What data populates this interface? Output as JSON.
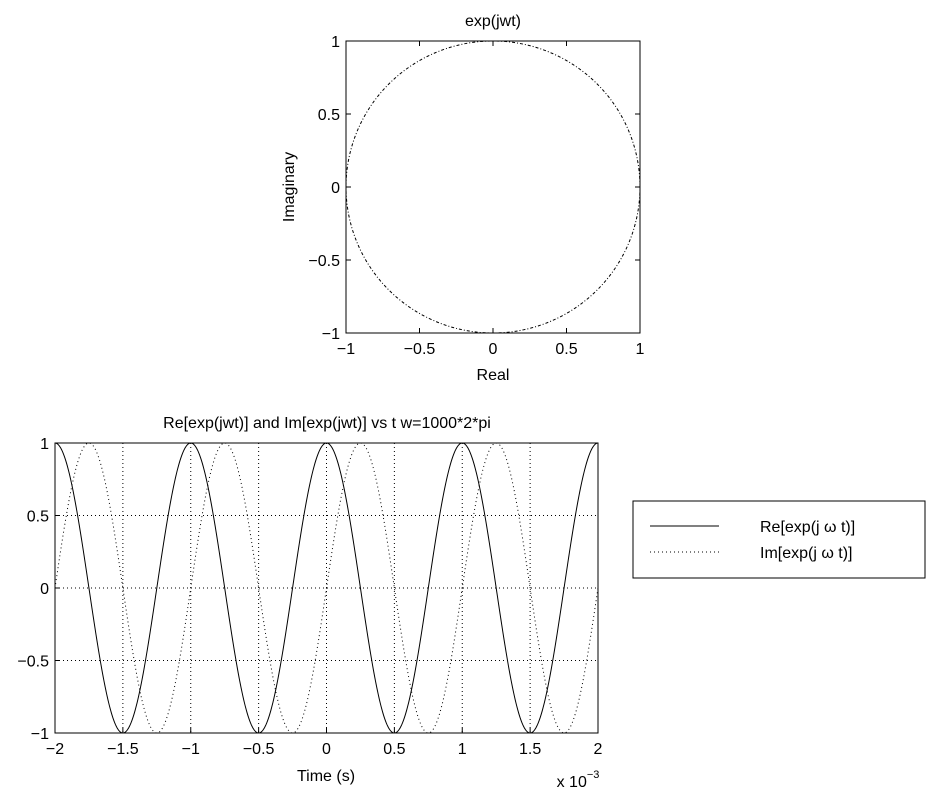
{
  "chart_data": [
    {
      "type": "line",
      "title": "exp(jwt)",
      "xlabel": "Real",
      "ylabel": "Imaginary",
      "xlim": [
        -1,
        1
      ],
      "ylim": [
        -1,
        1
      ],
      "xticks": [
        -1,
        -0.5,
        0,
        0.5,
        1
      ],
      "yticks": [
        -1,
        -0.5,
        0,
        0.5,
        1
      ],
      "xtick_labels": [
        "−1",
        "−0.5",
        "0",
        "0.5",
        "1"
      ],
      "ytick_labels": [
        "−1",
        "−0.5",
        "0",
        "0.5",
        "1"
      ],
      "grid": false,
      "series": [
        {
          "function": "unit_circle",
          "radius": 1,
          "line_style": "dash-dot",
          "color": "#000000"
        }
      ]
    },
    {
      "type": "line",
      "title": "Re[exp(jwt)] and Im[exp(jwt)] vs t   w=1000*2*pi",
      "xlabel": "Time (s)",
      "ylabel": "",
      "x_scale_label": "x 10",
      "x_scale_exponent": "−3",
      "xlim": [
        -0.002,
        0.002
      ],
      "ylim": [
        -1,
        1
      ],
      "xticks": [
        -0.002,
        -0.0015,
        -0.001,
        -0.0005,
        0,
        0.0005,
        0.001,
        0.0015,
        0.002
      ],
      "yticks": [
        -1,
        -0.5,
        0,
        0.5,
        1
      ],
      "xtick_labels": [
        "−2",
        "−1.5",
        "−1",
        "−0.5",
        "0",
        "0.5",
        "1",
        "1.5",
        "2"
      ],
      "ytick_labels": [
        "−1",
        "−0.5",
        "0",
        "0.5",
        "1"
      ],
      "grid": true,
      "omega": 6283.185307,
      "legend_position": "outside-right",
      "series": [
        {
          "name": "Re[exp(j ω t)]",
          "function": "cos",
          "line_style": "solid",
          "color": "#000000"
        },
        {
          "name": "Im[exp(j ω t)]",
          "function": "sin",
          "line_style": "dotted",
          "color": "#000000"
        }
      ]
    }
  ]
}
